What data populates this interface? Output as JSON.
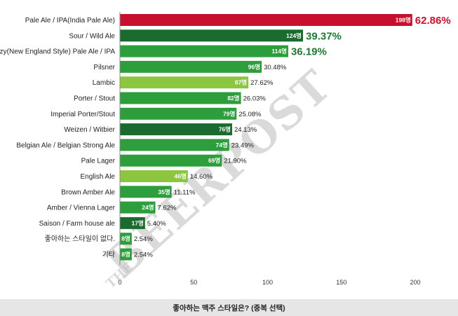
{
  "chart_data": {
    "type": "bar",
    "orientation": "horizontal",
    "title": "좋아하는 맥주 스타일은? (중복 선택)",
    "categories": [
      "Pale Ale / IPA(India Pale Ale)",
      "Sour / Wild Ale",
      "Hazy(New England Style) Pale Ale / IPA",
      "Pilsner",
      "Lambic",
      "Porter / Stout",
      "Imperial Porter/Stout",
      "Weizen / Witbier",
      "Belgian Ale / Belgian Strong Ale",
      "Pale Lager",
      "English Ale",
      "Brown Amber Ale",
      "Amber / Vienna Lager",
      "Saison / Farm house ale",
      "좋아하는 스타일이 없다.",
      "기타"
    ],
    "values": [
      198,
      124,
      114,
      96,
      87,
      82,
      79,
      76,
      74,
      69,
      46,
      35,
      24,
      17,
      8,
      8
    ],
    "bar_labels": [
      "198명",
      "124명",
      "114명",
      "96명",
      "87명",
      "82명",
      "79명",
      "76명",
      "74명",
      "69명",
      "46명",
      "35명",
      "24명",
      "17명",
      "8명",
      "8명"
    ],
    "percent_labels": [
      "62.86%",
      "39.37%",
      "36.19%",
      "30.48%",
      "27.62%",
      "26.03%",
      "25.08%",
      "24.13%",
      "23.49%",
      "21.90%",
      "14.60%",
      "11.11%",
      "7.62%",
      "5.40%",
      "2.54%",
      "2.54%"
    ],
    "colors": [
      "#c8102e",
      "#1b6b2f",
      "#2e9e3d",
      "#2e9e3d",
      "#8cc63f",
      "#2e9e3d",
      "#2e9e3d",
      "#1b6b2f",
      "#2e9e3d",
      "#2e9e3d",
      "#8cc63f",
      "#2e9e3d",
      "#2e9e3d",
      "#1b6b2f",
      "#2e9e3d",
      "#2e9e3d"
    ],
    "percent_emphasis": [
      "red",
      "green",
      "green",
      "",
      "",
      "",
      "",
      "",
      "",
      "",
      "",
      "",
      "",
      "",
      "",
      ""
    ],
    "xticks": [
      "0",
      "50",
      "100",
      "150",
      "200"
    ],
    "xlim": [
      0,
      200
    ],
    "grid": false,
    "watermark": {
      "main": "BEERPOST",
      "small": "THE"
    }
  }
}
